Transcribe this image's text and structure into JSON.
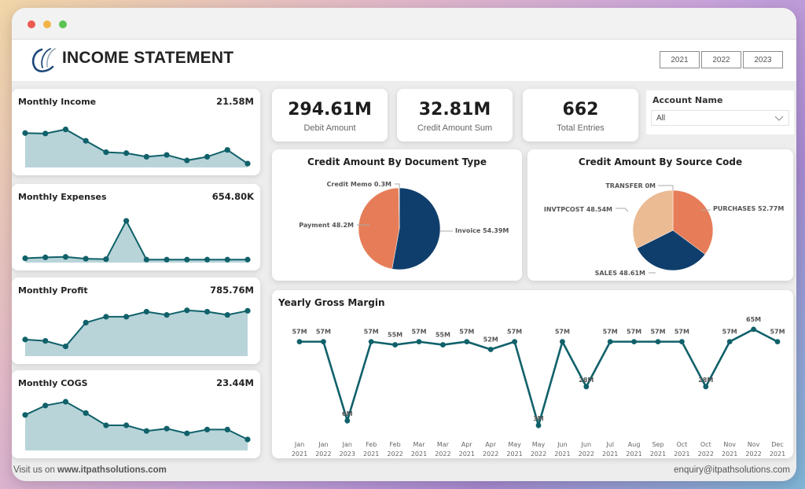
{
  "window": {
    "traffic_lights": [
      "close",
      "minimize",
      "maximize"
    ]
  },
  "header": {
    "title": "INCOME STATEMENT",
    "logo_icon": "swoosh-logo-icon",
    "year_buttons": [
      {
        "label": "2021"
      },
      {
        "label": "2022"
      },
      {
        "label": "2023"
      }
    ]
  },
  "colors": {
    "teal_line": "#10616a",
    "teal_fill": "#b8d4d9",
    "navy": "#0f3e6c",
    "orange": "#e67d58",
    "peach": "#ebbb93"
  },
  "sparklines": [
    {
      "title": "Monthly Income",
      "value": "21.58M",
      "points": [
        0.72,
        0.71,
        0.8,
        0.55,
        0.3,
        0.28,
        0.2,
        0.24,
        0.12,
        0.2,
        0.35,
        0.05
      ]
    },
    {
      "title": "Monthly Expenses",
      "value": "654.80K",
      "points": [
        0.06,
        0.08,
        0.09,
        0.05,
        0.04,
        0.88,
        0.03,
        0.03,
        0.03,
        0.03,
        0.03,
        0.03
      ]
    },
    {
      "title": "Monthly Profit",
      "value": "785.76M",
      "points": [
        0.33,
        0.3,
        0.18,
        0.7,
        0.83,
        0.83,
        0.94,
        0.87,
        0.97,
        0.94,
        0.87,
        0.96
      ]
    },
    {
      "title": "Monthly COGS",
      "value": "23.44M",
      "points": [
        0.72,
        0.92,
        1.0,
        0.76,
        0.5,
        0.5,
        0.38,
        0.43,
        0.33,
        0.41,
        0.41,
        0.2
      ]
    }
  ],
  "kpis": [
    {
      "value": "294.61M",
      "label": "Debit Amount"
    },
    {
      "value": "32.81M",
      "label": "Credit Amount Sum"
    },
    {
      "value": "662",
      "label": "Total Entries"
    }
  ],
  "slicer": {
    "title": "Account Name",
    "selected": "All",
    "chevron_icon": "chevron-down-icon"
  },
  "chart_data": [
    {
      "type": "pie",
      "title": "Credit Amount By Document Type",
      "slices": [
        {
          "label": "Invoice",
          "value": 54.39,
          "display": "Invoice 54.39M",
          "color": "#0f3e6c"
        },
        {
          "label": "Payment",
          "value": 48.2,
          "display": "Payment 48.2M",
          "color": "#e67d58"
        },
        {
          "label": "Credit Memo",
          "value": 0.3,
          "display": "Credit Memo 0.3M",
          "color": "#ebbb93"
        }
      ]
    },
    {
      "type": "pie",
      "title": "Credit Amount By Source Code",
      "slices": [
        {
          "label": "PURCHASES",
          "value": 52.77,
          "display": "PURCHASES 52.77M",
          "color": "#e67d58"
        },
        {
          "label": "SALES",
          "value": 48.61,
          "display": "SALES 48.61M",
          "color": "#0f3e6c"
        },
        {
          "label": "INVTPCOST",
          "value": 48.54,
          "display": "INVTPCOST 48.54M",
          "color": "#ebbb93"
        },
        {
          "label": "TRANSFER",
          "value": 0,
          "display": "TRANSFER 0M",
          "color": "#d9d9d9"
        }
      ]
    },
    {
      "type": "line",
      "title": "Yearly Gross Margin",
      "xlabel": "",
      "ylabel": "",
      "ylim": [
        0,
        70
      ],
      "categories": [
        [
          "Jan",
          "2021"
        ],
        [
          "Jan",
          "2022"
        ],
        [
          "Jan",
          "2023"
        ],
        [
          "Feb",
          "2021"
        ],
        [
          "Feb",
          "2022"
        ],
        [
          "Mar",
          "2021"
        ],
        [
          "Mar",
          "2022"
        ],
        [
          "Apr",
          "2021"
        ],
        [
          "Apr",
          "2022"
        ],
        [
          "May",
          "2021"
        ],
        [
          "May",
          "2022"
        ],
        [
          "Jun",
          "2021"
        ],
        [
          "Jun",
          "2022"
        ],
        [
          "Jul",
          "2021"
        ],
        [
          "Aug",
          "2021"
        ],
        [
          "Sep",
          "2021"
        ],
        [
          "Oct",
          "2021"
        ],
        [
          "Oct",
          "2022"
        ],
        [
          "Nov",
          "2021"
        ],
        [
          "Nov",
          "2022"
        ],
        [
          "Dec",
          "2021"
        ]
      ],
      "values": [
        57,
        57,
        6,
        57,
        55,
        57,
        55,
        57,
        52,
        57,
        3,
        57,
        28,
        57,
        57,
        57,
        57,
        28,
        57,
        65,
        57
      ],
      "data_labels": [
        "57M",
        "57M",
        "6M",
        "57M",
        "55M",
        "57M",
        "55M",
        "57M",
        "52M",
        "57M",
        "3M",
        "57M",
        "28M",
        "57M",
        "57M",
        "57M",
        "57M",
        "28M",
        "57M",
        "65M",
        "57M"
      ]
    }
  ],
  "footer": {
    "left_prefix": "Visit us on ",
    "left_link": "www.itpathsolutions.com",
    "right": "enquiry@itpathsolutions.com"
  }
}
